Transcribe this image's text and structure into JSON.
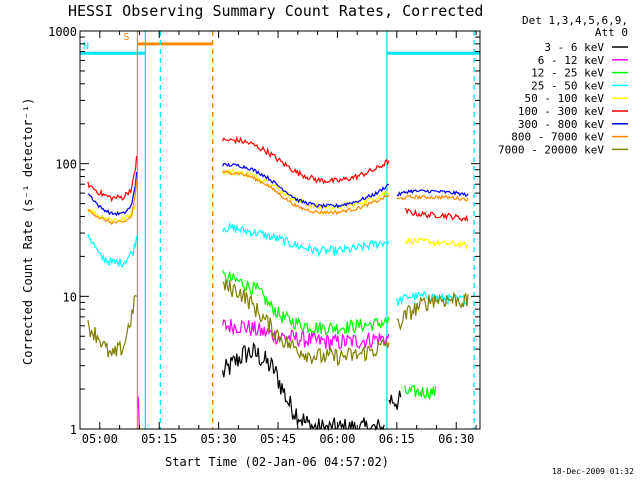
{
  "chart_data": {
    "type": "line",
    "title": "HESSI Observing Summary Count Rates, Corrected",
    "xlabel": "Start Time (02-Jan-06 04:57:02)",
    "ylabel": "Corrected Count Rate (s⁻¹ detector⁻¹)",
    "footer": "18-Dec-2009 01:32",
    "legend_header": [
      "Det 1,3,4,5,6,9,",
      "Att 0"
    ],
    "x_unit": "minutes of day",
    "xlim": [
      295,
      396
    ],
    "ylim": [
      1,
      1000
    ],
    "y_scale": "log",
    "x_ticks": [
      {
        "v": 300,
        "label": "05:00"
      },
      {
        "v": 315,
        "label": "05:15"
      },
      {
        "v": 330,
        "label": "05:30"
      },
      {
        "v": 345,
        "label": "05:45"
      },
      {
        "v": 360,
        "label": "06:00"
      },
      {
        "v": 375,
        "label": "06:15"
      },
      {
        "v": 390,
        "label": "06:30"
      }
    ],
    "y_ticks": [
      {
        "v": 1,
        "label": "1"
      },
      {
        "v": 10,
        "label": "10"
      },
      {
        "v": 100,
        "label": "100"
      },
      {
        "v": 1000,
        "label": "1000"
      }
    ],
    "flags": [
      {
        "label": "S",
        "color": "#ff8800",
        "level": 800,
        "start": 309.5,
        "end": 328.5
      },
      {
        "label": "N",
        "color": "#00e5ee",
        "level": 680,
        "start": 295,
        "end": 311.5
      },
      {
        "label": "",
        "color": "#00e5ee",
        "level": 680,
        "start": 372.5,
        "end": 396
      }
    ],
    "vlines": [
      {
        "x": 309.5,
        "color": "#ff8800",
        "dashed": false
      },
      {
        "x": 328.5,
        "color": "#ff8800",
        "dashed": true
      },
      {
        "x": 311.5,
        "color": "#00e5ee",
        "dashed": false
      },
      {
        "x": 315.3,
        "color": "#00e5ee",
        "dashed": true
      },
      {
        "x": 372.5,
        "color": "#00e5ee",
        "dashed": false
      },
      {
        "x": 394.5,
        "color": "#00e5ee",
        "dashed": true
      }
    ],
    "series": [
      {
        "name": "3 - 6 keV",
        "color": "#000000",
        "noise": 0.2,
        "segments": [
          {
            "x": [
              331,
              336,
              338,
              340,
              344,
              348,
              350,
              352,
              355,
              358,
              362,
              366,
              369,
              372
            ],
            "y": [
              2.6,
              3.6,
              3.8,
              3.6,
              2.8,
              1.5,
              1.3,
              1.1,
              1,
              1,
              1,
              1,
              1,
              1
            ]
          },
          {
            "x": [
              373,
              376
            ],
            "y": [
              1.7,
              1.6
            ]
          }
        ]
      },
      {
        "name": "6 - 12 keV",
        "color": "#ff00ff",
        "noise": 0.15,
        "segments": [
          {
            "x": [
              331,
              336,
              340,
              345,
              350,
              355,
              360,
              365,
              370,
              373
            ],
            "y": [
              6,
              6,
              5.5,
              5,
              4.8,
              4.6,
              4.5,
              4.6,
              4.8,
              4.8
            ]
          },
          {
            "x": [
              309.7,
              310
            ],
            "y": [
              1.8,
              1
            ]
          }
        ]
      },
      {
        "name": "12 - 25 keV",
        "color": "#00ff00",
        "noise": 0.12,
        "segments": [
          {
            "x": [
              331,
              335,
              340,
              343,
              346,
              350,
              355,
              360,
              365,
              370,
              373
            ],
            "y": [
              14,
              13,
              11,
              8.5,
              7,
              6.2,
              5.8,
              5.8,
              6,
              6.2,
              6.5
            ]
          },
          {
            "x": [
              377,
              385
            ],
            "y": [
              1.9,
              1.9
            ]
          }
        ]
      },
      {
        "name": "25 - 50 keV",
        "color": "#00ffff",
        "noise": 0.08,
        "segments": [
          {
            "x": [
              297,
              300,
              303,
              306,
              308.5,
              309.5
            ],
            "y": [
              30,
              20,
              18,
              18,
              22,
              30
            ]
          },
          {
            "x": [
              331,
              335,
              340,
              345,
              350,
              355,
              360,
              365,
              370,
              373
            ],
            "y": [
              33,
              32,
              30,
              27,
              24,
              22,
              22,
              23,
              25,
              26
            ]
          },
          {
            "x": [
              375,
              378,
              381,
              384,
              387,
              390,
              393
            ],
            "y": [
              9,
              10,
              10,
              10,
              9.5,
              9.5,
              9.5
            ]
          }
        ]
      },
      {
        "name": "50 - 100 keV",
        "color": "#ffff00",
        "noise": 0.05,
        "segments": [
          {
            "x": [
              297,
              300,
              303,
              306,
              308,
              309.5
            ],
            "y": [
              45,
              40,
              38,
              38,
              42,
              55
            ]
          },
          {
            "x": [
              331,
              335,
              338,
              342,
              346,
              350,
              355,
              360,
              365,
              370,
              373
            ],
            "y": [
              88,
              86,
              82,
              75,
              62,
              52,
              47,
              47,
              50,
              56,
              62
            ]
          },
          {
            "x": [
              377,
              380,
              383,
              386,
              389,
              393
            ],
            "y": [
              26,
              26,
              26,
              25,
              25,
              24
            ]
          }
        ]
      },
      {
        "name": "100 - 300 keV",
        "color": "#ff0000",
        "noise": 0.05,
        "segments": [
          {
            "x": [
              297,
              300,
              303,
              306,
              308,
              309,
              309.5
            ],
            "y": [
              70,
              60,
              55,
              56,
              65,
              90,
              140
            ]
          },
          {
            "x": [
              331,
              335,
              338,
              342,
              346,
              350,
              355,
              360,
              365,
              370,
              373
            ],
            "y": [
              150,
              150,
              142,
              125,
              102,
              85,
              75,
              74,
              80,
              92,
              105
            ]
          },
          {
            "x": [
              377,
              380,
              383,
              386,
              389,
              393
            ],
            "y": [
              44,
              42,
              41,
              41,
              40,
              38
            ]
          }
        ]
      },
      {
        "name": "300 - 800 keV",
        "color": "#0000ff",
        "noise": 0.03,
        "segments": [
          {
            "x": [
              297,
              300,
              303,
              306,
              308,
              309,
              309.5
            ],
            "y": [
              60,
              47,
              42,
              42,
              48,
              70,
              100
            ]
          },
          {
            "x": [
              331,
              335,
              338,
              342,
              346,
              350,
              355,
              360,
              365,
              370,
              373
            ],
            "y": [
              98,
              97,
              92,
              80,
              65,
              53,
              48,
              48,
              52,
              60,
              70
            ]
          },
          {
            "x": [
              375,
              378,
              381,
              384,
              387,
              390,
              393
            ],
            "y": [
              58,
              62,
              62,
              62,
              61,
              60,
              58
            ]
          }
        ]
      },
      {
        "name": "800 - 7000 keV",
        "color": "#ff8800",
        "noise": 0.03,
        "segments": [
          {
            "x": [
              297,
              300,
              303,
              306,
              308,
              309,
              309.5
            ],
            "y": [
              45,
              39,
              36,
              36,
              40,
              60,
              90
            ]
          },
          {
            "x": [
              331,
              335,
              338,
              342,
              346,
              350,
              355,
              360,
              365,
              370,
              373
            ],
            "y": [
              86,
              85,
              80,
              70,
              57,
              47,
              43,
              43,
              46,
              52,
              58
            ]
          },
          {
            "x": [
              375,
              378,
              381,
              384,
              387,
              390,
              393
            ],
            "y": [
              54,
              56,
              56,
              56,
              56,
              55,
              54
            ]
          }
        ]
      },
      {
        "name": "7000 - 20000 keV",
        "color": "#808000",
        "noise": 0.15,
        "segments": [
          {
            "x": [
              297,
              300,
              301,
              303,
              306,
              307,
              308.5,
              309.5
            ],
            "y": [
              6,
              4.8,
              4.2,
              3.5,
              4.2,
              5.5,
              8,
              12
            ]
          },
          {
            "x": [
              331,
              335,
              338,
              341,
              344,
              347,
              350,
              353,
              356,
              360,
              365,
              370,
              373
            ],
            "y": [
              12,
              11,
              9,
              7,
              5.5,
              4.5,
              4,
              3.6,
              3.5,
              3.5,
              3.6,
              4,
              4.5
            ]
          },
          {
            "x": [
              375,
              378,
              381,
              384,
              387,
              390,
              393
            ],
            "y": [
              6,
              7.5,
              8.5,
              9.5,
              9.5,
              9.5,
              9
            ]
          }
        ]
      }
    ]
  }
}
